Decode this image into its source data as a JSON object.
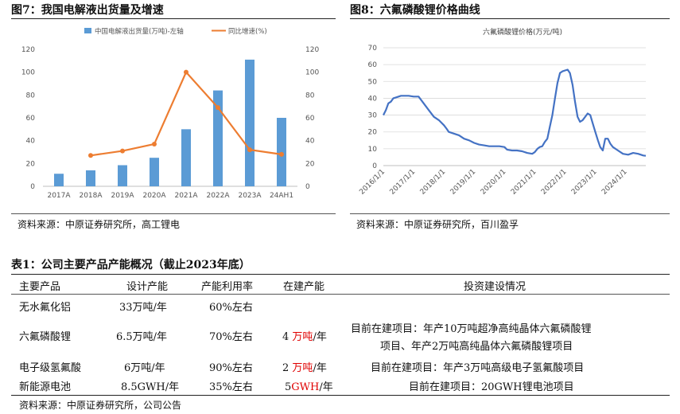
{
  "fig7": {
    "title": "图7：我国电解液出货量及增速",
    "source": "资料来源：中原证券研究所，高工锂电",
    "chart_data": {
      "type": "bar+line",
      "categories": [
        "2017A",
        "2018A",
        "2019A",
        "2020A",
        "2021A",
        "2022A",
        "2023A",
        "24AH1"
      ],
      "series": [
        {
          "name": "中国电解液出货量(万吨)-左轴",
          "type": "bar",
          "axis": "left",
          "color": "#5b9bd5",
          "values": [
            11,
            14,
            18.5,
            25,
            50,
            84,
            111,
            60
          ]
        },
        {
          "name": "同比增速(%)",
          "type": "line",
          "axis": "right",
          "color": "#ed7d31",
          "values": [
            null,
            27,
            31,
            37,
            100,
            69,
            32,
            28
          ]
        }
      ],
      "ylim_left": [
        0,
        120
      ],
      "ylim_right": [
        0,
        120
      ],
      "yticks_left": [
        "0",
        "20",
        "40",
        "60",
        "80",
        "100",
        "120"
      ],
      "yticks_right": [
        "0",
        "20",
        "40",
        "60",
        "80",
        "100",
        "120"
      ],
      "legend": "top"
    }
  },
  "fig8": {
    "title": "图8：六氟磷酸锂价格曲线",
    "source": "资料来源：中原证券研究所，百川盈孚",
    "chart_data": {
      "type": "line",
      "title": "六氟磷酸锂价格(万元/吨)",
      "color": "#4472c4",
      "ylim": [
        0,
        70
      ],
      "yticks": [
        "0",
        "10",
        "20",
        "30",
        "40",
        "50",
        "60",
        "70"
      ],
      "xticks": [
        "2016/1/1",
        "2017/1/1",
        "2018/1/1",
        "2019/1/1",
        "2020/1/1",
        "2021/1/1",
        "2022/1/1",
        "2023/1/1",
        "2024/1/1"
      ],
      "x_start": "2016/1/1",
      "x_end": "2024/9/1",
      "points": [
        [
          "2016/1/1",
          30
        ],
        [
          "2016/2/1",
          33
        ],
        [
          "2016/3/1",
          37
        ],
        [
          "2016/4/1",
          38
        ],
        [
          "2016/5/1",
          40
        ],
        [
          "2016/6/1",
          40.5
        ],
        [
          "2016/8/1",
          41.5
        ],
        [
          "2016/11/1",
          41.5
        ],
        [
          "2017/1/1",
          41
        ],
        [
          "2017/3/1",
          41
        ],
        [
          "2017/5/1",
          37
        ],
        [
          "2017/7/1",
          33
        ],
        [
          "2017/9/1",
          29
        ],
        [
          "2017/11/1",
          27
        ],
        [
          "2018/1/1",
          24
        ],
        [
          "2018/2/1",
          22
        ],
        [
          "2018/3/1",
          20
        ],
        [
          "2018/5/1",
          19
        ],
        [
          "2018/7/1",
          18
        ],
        [
          "2018/9/1",
          16
        ],
        [
          "2018/11/1",
          15
        ],
        [
          "2019/1/1",
          13.5
        ],
        [
          "2019/3/1",
          12.5
        ],
        [
          "2019/5/1",
          12
        ],
        [
          "2019/7/1",
          11.5
        ],
        [
          "2019/9/1",
          11.5
        ],
        [
          "2019/11/1",
          11.5
        ],
        [
          "2020/1/1",
          11
        ],
        [
          "2020/2/1",
          9.5
        ],
        [
          "2020/4/1",
          9
        ],
        [
          "2020/6/1",
          9
        ],
        [
          "2020/8/1",
          8.5
        ],
        [
          "2020/10/1",
          7.5
        ],
        [
          "2020/12/1",
          7
        ],
        [
          "2021/1/1",
          8
        ],
        [
          "2021/2/1",
          10
        ],
        [
          "2021/3/1",
          11
        ],
        [
          "2021/4/1",
          11.5
        ],
        [
          "2021/5/1",
          14
        ],
        [
          "2021/6/1",
          16
        ],
        [
          "2021/7/1",
          23
        ],
        [
          "2021/8/1",
          30
        ],
        [
          "2021/9/1",
          40
        ],
        [
          "2021/10/1",
          49
        ],
        [
          "2021/11/1",
          55
        ],
        [
          "2021/12/1",
          56
        ],
        [
          "2022/1/1",
          56.5
        ],
        [
          "2022/2/1",
          57
        ],
        [
          "2022/3/1",
          55
        ],
        [
          "2022/4/1",
          48
        ],
        [
          "2022/5/1",
          38
        ],
        [
          "2022/6/1",
          29
        ],
        [
          "2022/7/1",
          26
        ],
        [
          "2022/8/1",
          27
        ],
        [
          "2022/9/1",
          29
        ],
        [
          "2022/10/1",
          31
        ],
        [
          "2022/11/1",
          30
        ],
        [
          "2022/12/1",
          25
        ],
        [
          "2023/1/1",
          20
        ],
        [
          "2023/2/1",
          15
        ],
        [
          "2023/3/1",
          11
        ],
        [
          "2023/4/1",
          9
        ],
        [
          "2023/5/1",
          16
        ],
        [
          "2023/6/1",
          16
        ],
        [
          "2023/7/1",
          13
        ],
        [
          "2023/8/1",
          11
        ],
        [
          "2023/10/1",
          9
        ],
        [
          "2023/12/1",
          7
        ],
        [
          "2024/2/1",
          6.5
        ],
        [
          "2024/4/1",
          7.5
        ],
        [
          "2024/6/1",
          7
        ],
        [
          "2024/8/1",
          6
        ],
        [
          "2024/9/1",
          5.8
        ]
      ]
    }
  },
  "table": {
    "title": "表1：公司主要产品产能概况（截止2023年底）",
    "headers": [
      "主要产品",
      "设计产能",
      "产能利用率",
      "在建产能",
      "投资建设情况"
    ],
    "rows": [
      {
        "product": "无水氟化铝",
        "capacity": "33万吨/年",
        "utilization": "60%左右",
        "building": "",
        "building_num": "",
        "building_unit": "",
        "building_rest": "",
        "plan": ""
      },
      {
        "product": "六氟磷酸锂",
        "capacity": "6.5万吨/年",
        "utilization": "70%左右",
        "building_num": "4",
        "building_unit": "万吨",
        "building_rest": "/年",
        "plan": "目前在建项目：年产10万吨超净高纯晶体六氟磷酸锂项目、年产2万吨高纯晶体六氟磷酸锂项目"
      },
      {
        "product": "电子级氢氟酸",
        "capacity": "6万吨/年",
        "utilization": "90%左右",
        "building_num": "2",
        "building_unit": "万吨",
        "building_rest": "/年",
        "plan": "目前在建项目：年产3万吨高级电子氢氟酸项目"
      },
      {
        "product": "新能源电池",
        "capacity": "8.5GWH/年",
        "utilization": "35%左右",
        "building_num": "5",
        "building_unit": "GWH",
        "building_rest": "/年",
        "plan": "目前在建项目：20GWH锂电池项目"
      }
    ],
    "plan_line1": "目前在建项目：年产10万吨超净高纯晶体六氟磷酸锂",
    "plan_line2": "项目、年产2万吨高纯晶体六氟磷酸锂项目",
    "source": "资料来源：中原证券研究所，公司公告"
  }
}
